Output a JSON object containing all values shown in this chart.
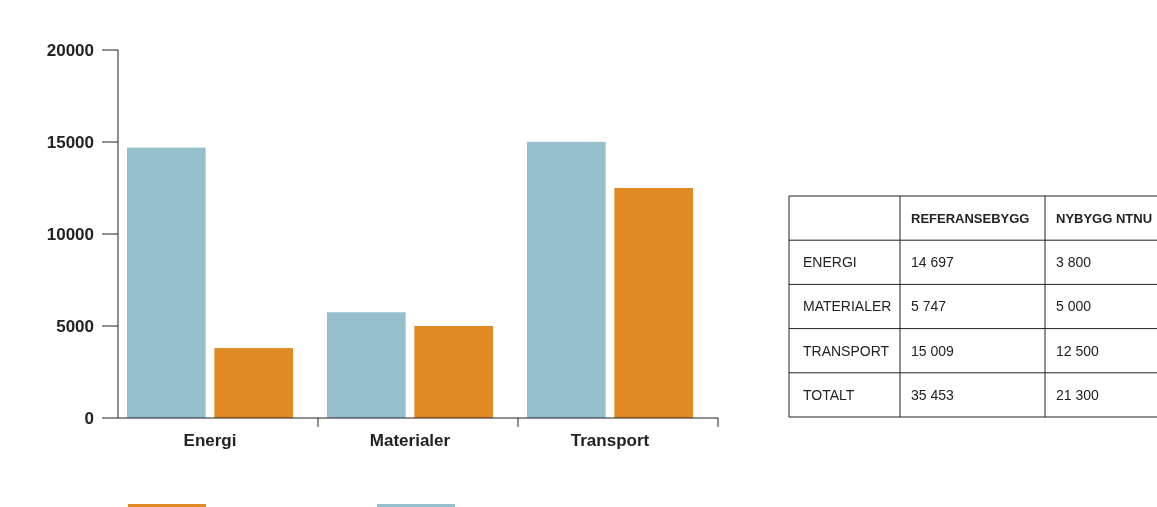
{
  "chart_data": [
    {
      "type": "bar",
      "categories": [
        "Energi",
        "Materialer",
        "Transport"
      ],
      "series": [
        {
          "color": "#95bfcc",
          "values": [
            14697,
            5747,
            15009
          ]
        },
        {
          "color": "#e08a26",
          "values": [
            3800,
            5000,
            12500
          ]
        }
      ],
      "ylim": [
        0,
        20000
      ],
      "yticks": [
        0,
        5000,
        10000,
        15000,
        20000
      ],
      "grid": false
    },
    {
      "type": "other",
      "categories": [
        "ENERGI",
        "MATERIALER",
        "TRANSPORT",
        "TOTALT"
      ],
      "series": [
        {
          "name": "REFERANSEBYGG",
          "values": [
            14697,
            5747,
            15009,
            35453
          ],
          "value_labels": [
            "14 697",
            "5 747",
            "15 009",
            "35 453"
          ]
        },
        {
          "name": "NYBYGG NTNU",
          "values": [
            3800,
            5000,
            12500,
            21300
          ],
          "value_labels": [
            "3 800",
            "5 000",
            "12 500",
            "21 300"
          ]
        }
      ]
    }
  ]
}
